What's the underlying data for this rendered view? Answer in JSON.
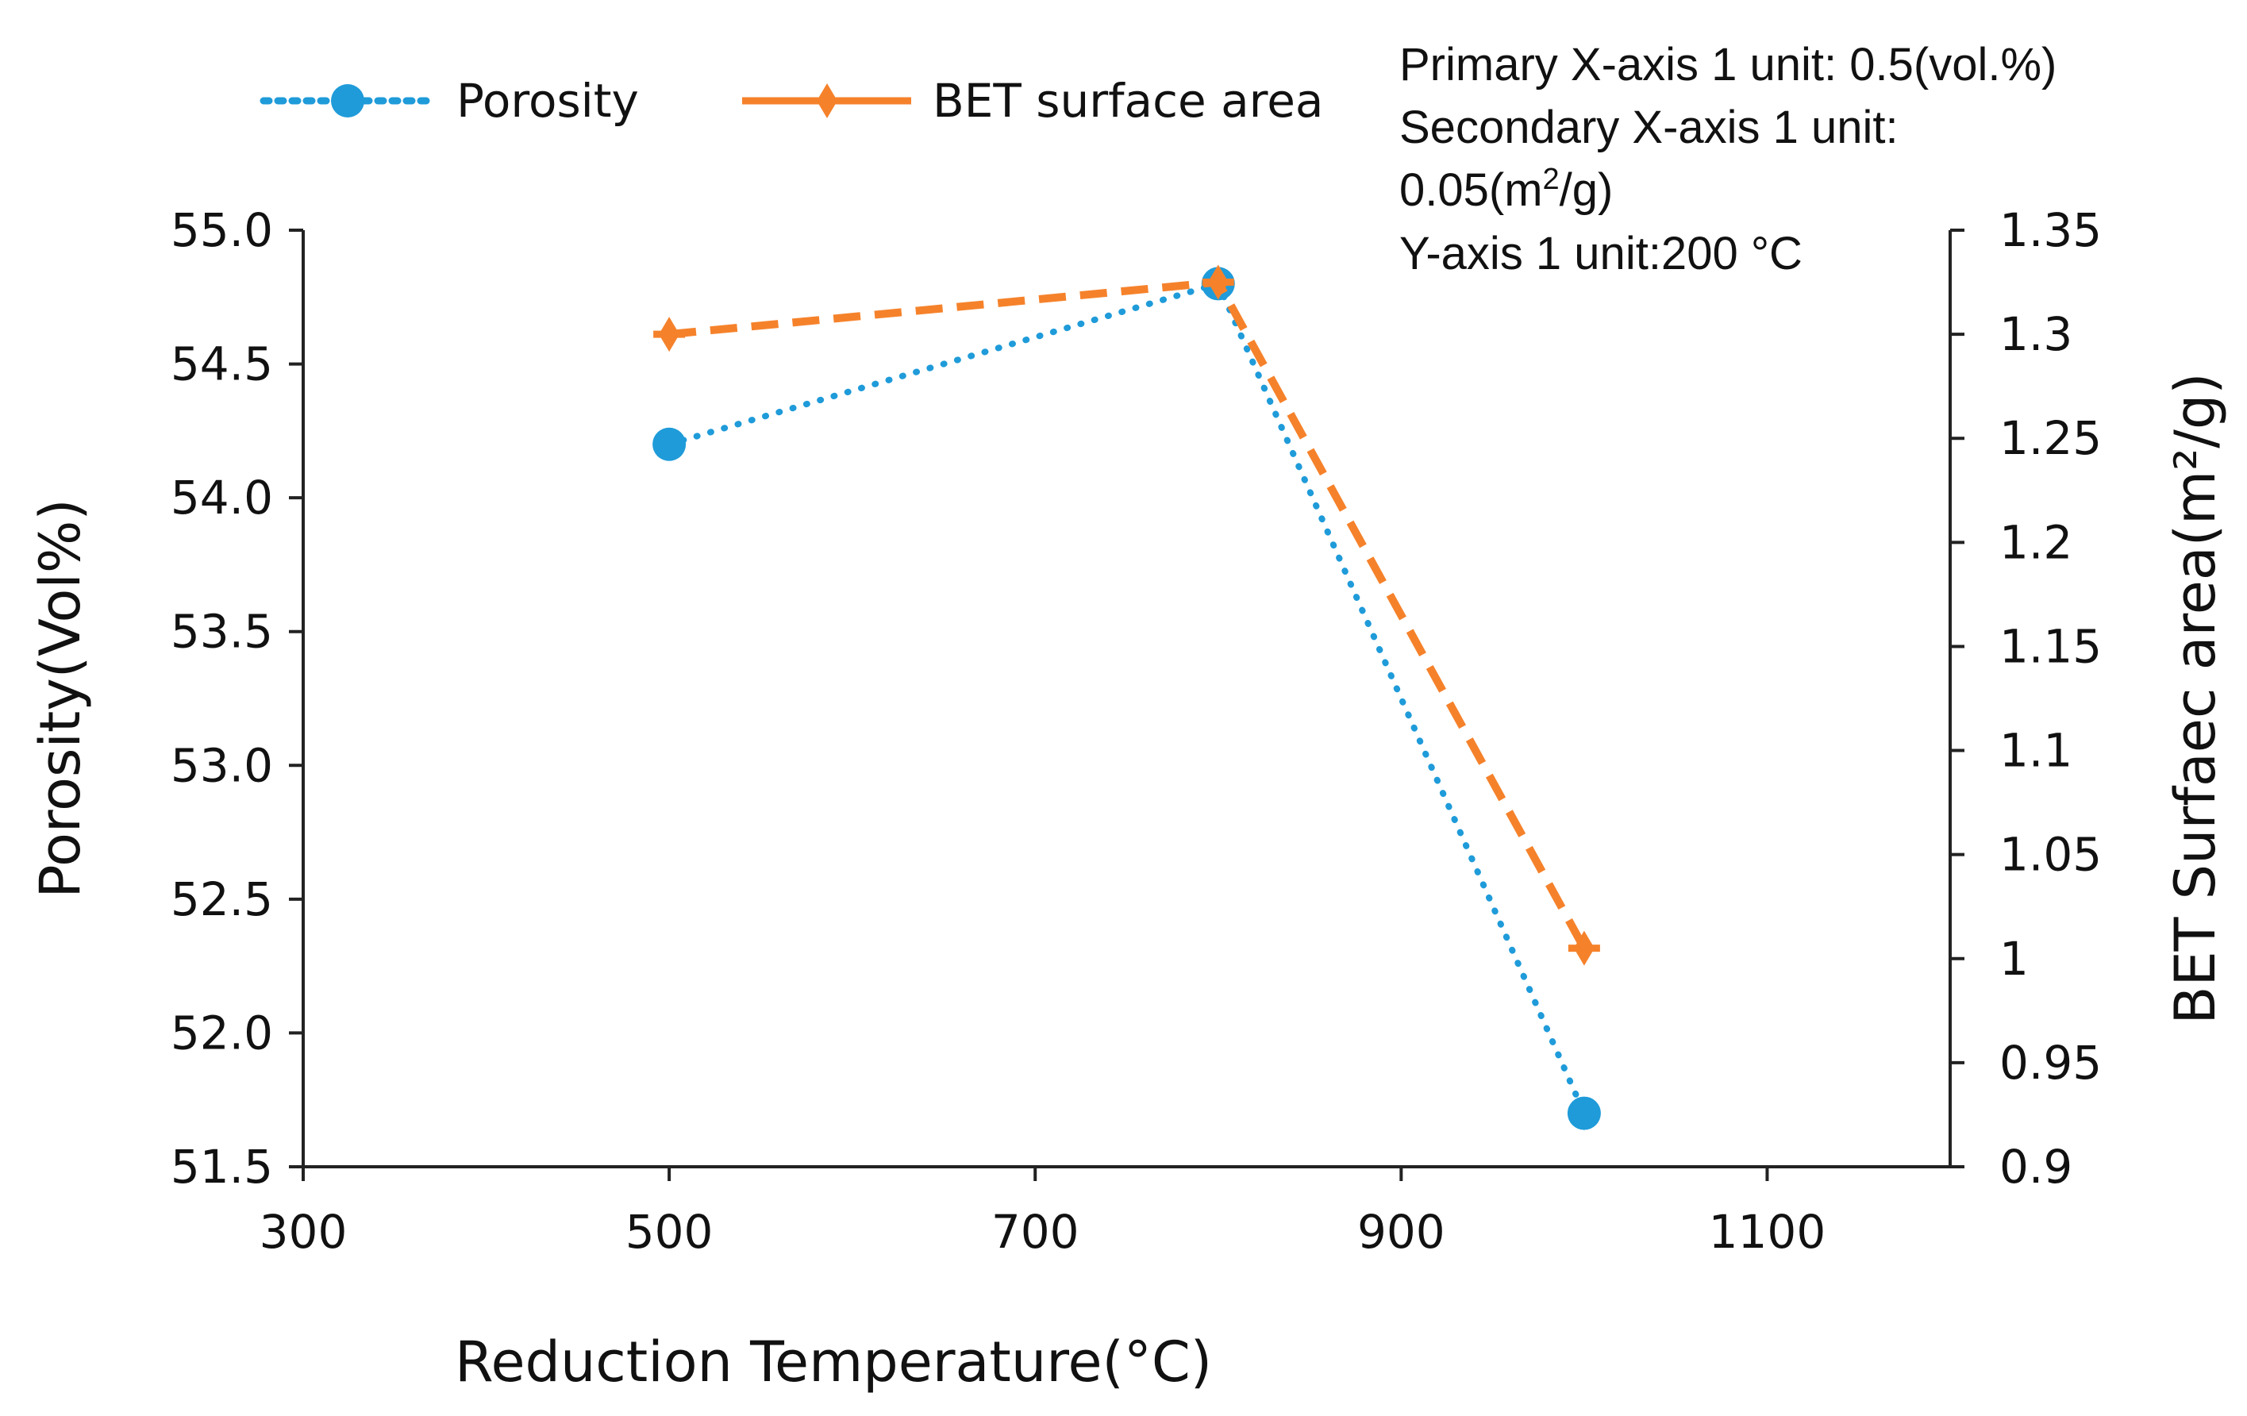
{
  "chart_data": {
    "type": "line",
    "x_values": [
      500,
      800,
      1000
    ],
    "x_axis": {
      "label": "Reduction Temperature(°C)",
      "range": [
        300,
        1200
      ],
      "ticks": [
        "300",
        "500",
        "700",
        "900",
        "1100"
      ]
    },
    "y_left_axis": {
      "label": "Porosity(Vol%)",
      "range": [
        51.5,
        55.0
      ],
      "ticks": [
        "51.5",
        "52.0",
        "52.5",
        "53.0",
        "53.5",
        "54.0",
        "54.5",
        "55.0"
      ]
    },
    "y_right_axis": {
      "label": "BET Surfaec area(m²/g)",
      "range": [
        0.9,
        1.35
      ],
      "ticks": [
        "0.9",
        "0.95",
        "1",
        "1.05",
        "1.1",
        "1.15",
        "1.2",
        "1.25",
        "1.3",
        "1.35"
      ]
    },
    "series": [
      {
        "name": "Porosity",
        "axis": "left",
        "values": [
          54.2,
          54.8,
          51.7
        ],
        "color": "#1f9bd9",
        "line_style": "dotted",
        "marker": "circle"
      },
      {
        "name": "BET surface area",
        "axis": "right",
        "values": [
          1.3,
          1.325,
          1.005
        ],
        "color": "#f5822b",
        "line_style": "dashed",
        "marker": "diamond"
      }
    ],
    "legend": {
      "placement": "top-left"
    },
    "annotation": {
      "line1": "Primary X-axis 1 unit: 0.5(vol.%)",
      "line2": "Secondary X-axis 1 unit:",
      "line3_prefix": "0.05(m",
      "line3_sup": "2",
      "line3_suffix": "/g)",
      "line4": "Y-axis 1 unit:200 °C"
    },
    "grid": false
  }
}
